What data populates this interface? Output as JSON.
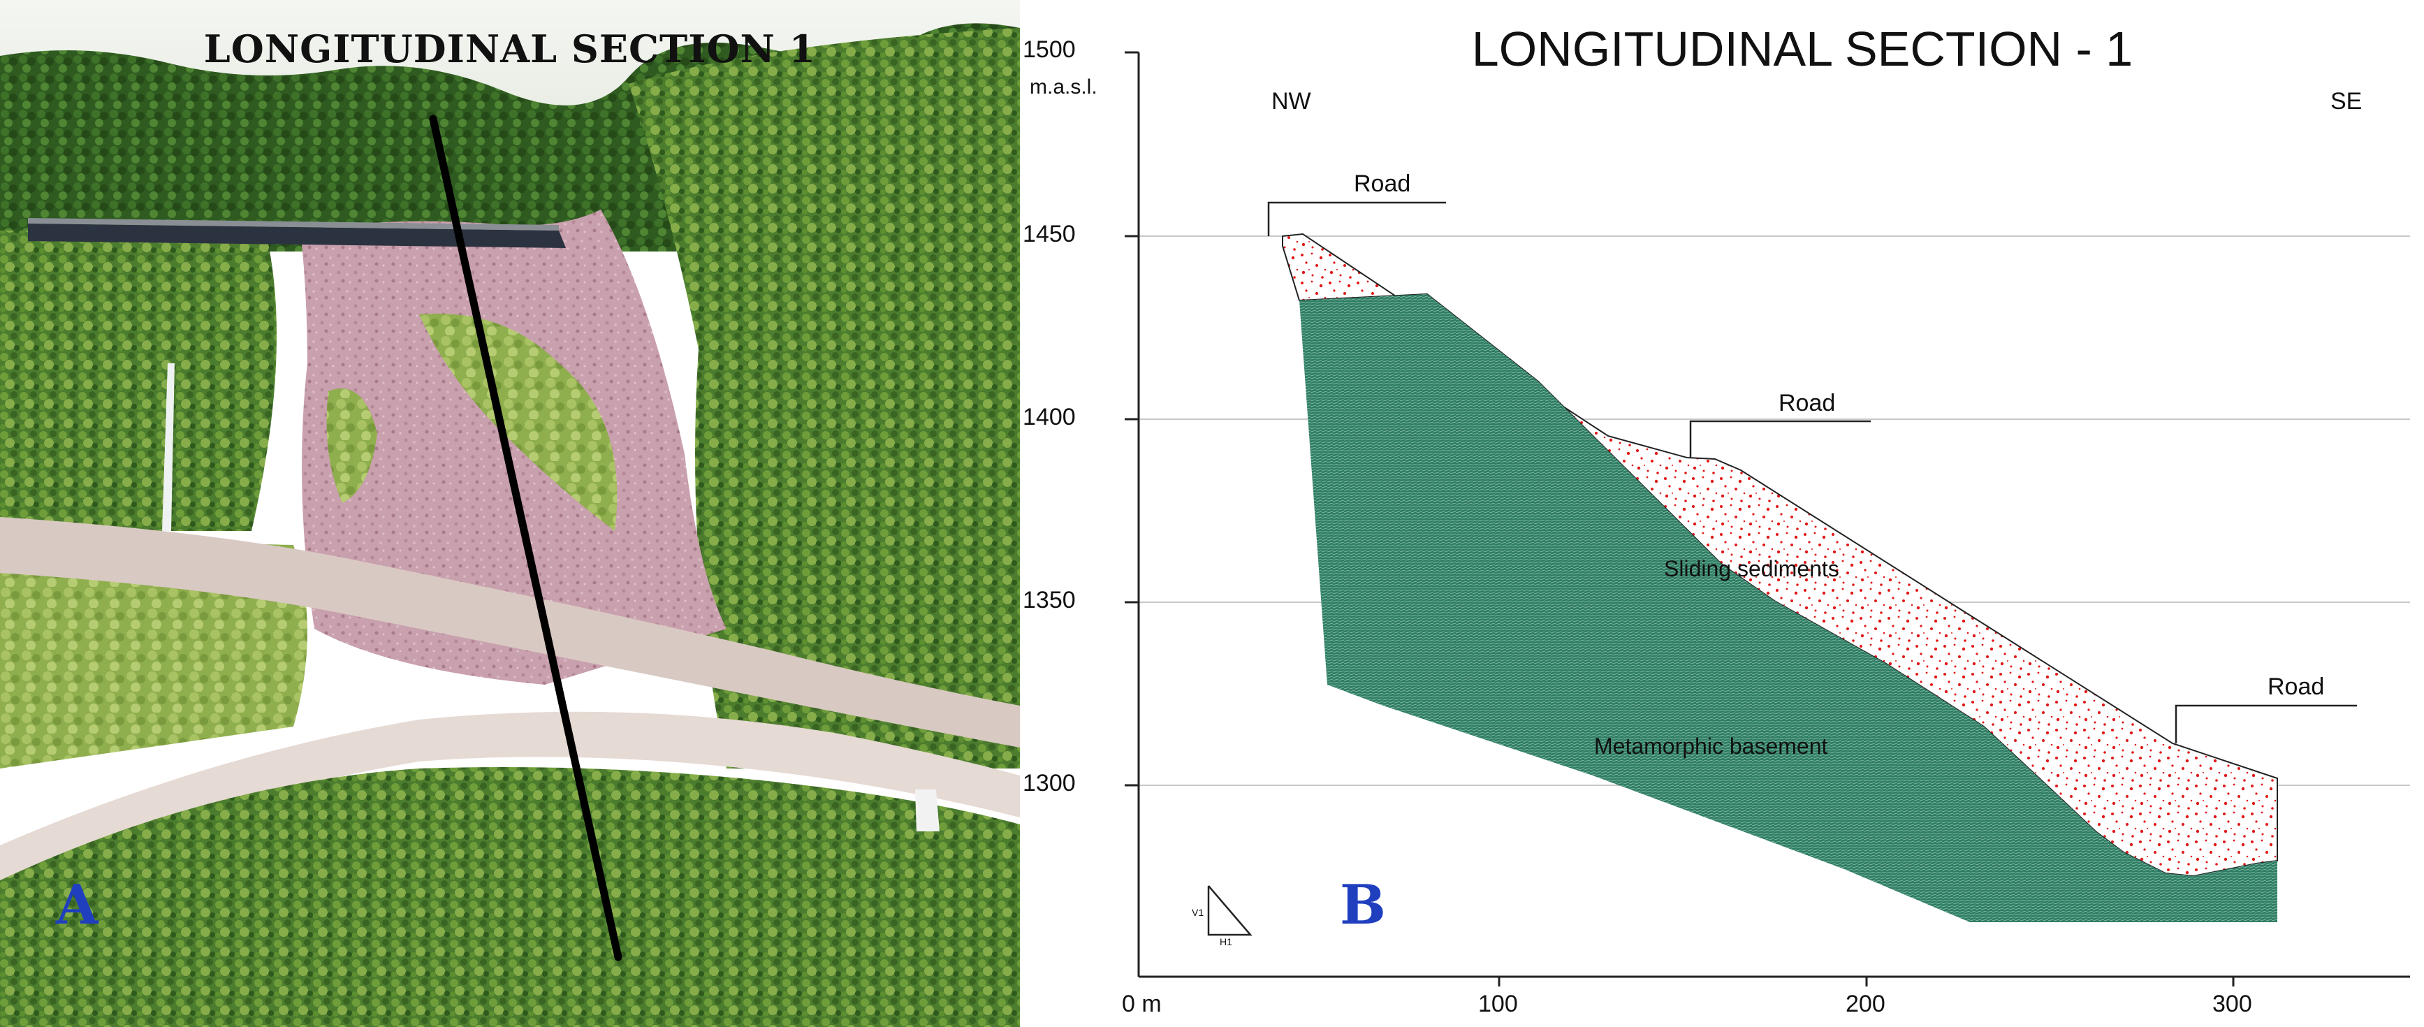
{
  "photo_panel": {
    "title": "LONGITUDINAL SECTION 1",
    "letter": "A"
  },
  "section_panel": {
    "title": "LONGITUDINAL SECTION - 1",
    "letter": "B",
    "y_unit": "m.a.s.l.",
    "x_unit_prefix": "0 m",
    "direction_left": "NW",
    "direction_right": "SE",
    "y_ticks": [
      "1500",
      "1450",
      "1400",
      "1350",
      "1300"
    ],
    "x_ticks": [
      "100",
      "200",
      "300"
    ],
    "road_labels": [
      "Road",
      "Road",
      "Road"
    ],
    "sliding_sediments_label": "Sliding sediments",
    "basement_label": "Metamorphic basement",
    "scale_v": "V1",
    "scale_h": "H1",
    "colors": {
      "sediments_dots": "#e01818",
      "basement_fill": "#2f7d64",
      "grid": "#c8c8c8"
    }
  }
}
